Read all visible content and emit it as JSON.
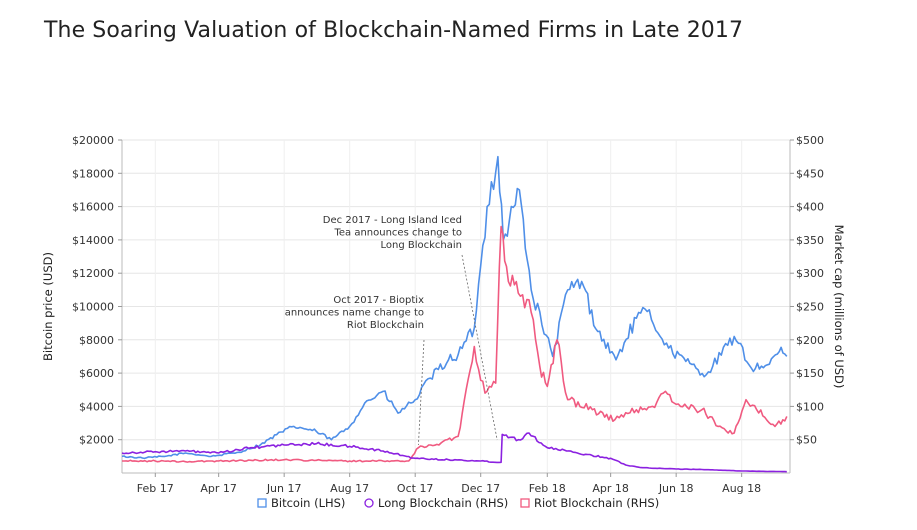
{
  "title": "The Soaring Valuation of Blockchain-Named Firms in Late 2017",
  "chart_data": {
    "type": "line",
    "title": "The Soaring Valuation of Blockchain-Named Firms in Late 2017",
    "xlabel": "",
    "ylabel": "Bitcoin price (USD)",
    "y2label": "Market cap (millions of USD)",
    "ylim": [
      0,
      20000
    ],
    "y2lim": [
      0,
      500
    ],
    "xlim": [
      "2017-01-01",
      "2018-09-15"
    ],
    "yticks": [
      "$2000",
      "$4000",
      "$6000",
      "$8000",
      "$10000",
      "$12000",
      "$14000",
      "$16000",
      "$18000",
      "$20000"
    ],
    "y2ticks": [
      "$50",
      "$100",
      "$150",
      "$200",
      "$250",
      "$300",
      "$350",
      "$400",
      "$450",
      "$500"
    ],
    "xticks": [
      "Feb 17",
      "Apr 17",
      "Jun 17",
      "Aug 17",
      "Oct 17",
      "Dec 17",
      "Feb 18",
      "Apr 18",
      "Jun 18",
      "Aug 18"
    ],
    "legend_position": "bottom-center",
    "series": [
      {
        "name": "Bitcoin (LHS)",
        "axis": "left",
        "color": "#4f8fe8",
        "points": [
          [
            "2017-01-01",
            1000
          ],
          [
            "2017-01-20",
            900
          ],
          [
            "2017-02-10",
            1000
          ],
          [
            "2017-03-01",
            1200
          ],
          [
            "2017-03-25",
            1000
          ],
          [
            "2017-04-20",
            1250
          ],
          [
            "2017-05-10",
            1700
          ],
          [
            "2017-05-25",
            2300
          ],
          [
            "2017-06-10",
            2800
          ],
          [
            "2017-07-01",
            2500
          ],
          [
            "2017-07-15",
            2000
          ],
          [
            "2017-08-01",
            2800
          ],
          [
            "2017-08-15",
            4200
          ],
          [
            "2017-09-01",
            4900
          ],
          [
            "2017-09-15",
            3600
          ],
          [
            "2017-10-01",
            4400
          ],
          [
            "2017-10-15",
            5700
          ],
          [
            "2017-11-01",
            6800
          ],
          [
            "2017-11-10",
            7100
          ],
          [
            "2017-11-25",
            8700
          ],
          [
            "2017-12-07",
            16000
          ],
          [
            "2017-12-17",
            19000
          ],
          [
            "2017-12-22",
            14000
          ],
          [
            "2018-01-06",
            17000
          ],
          [
            "2018-01-17",
            11000
          ],
          [
            "2018-02-06",
            7000
          ],
          [
            "2018-02-20",
            11000
          ],
          [
            "2018-03-05",
            11500
          ],
          [
            "2018-03-20",
            8500
          ],
          [
            "2018-04-06",
            6800
          ],
          [
            "2018-04-25",
            9300
          ],
          [
            "2018-05-05",
            9700
          ],
          [
            "2018-05-25",
            7500
          ],
          [
            "2018-06-10",
            6700
          ],
          [
            "2018-06-29",
            5900
          ],
          [
            "2018-07-25",
            8200
          ],
          [
            "2018-08-10",
            6300
          ],
          [
            "2018-08-25",
            6500
          ],
          [
            "2018-09-05",
            7300
          ],
          [
            "2018-09-12",
            7000
          ]
        ]
      },
      {
        "name": "Long Blockchain (RHS)",
        "axis": "right",
        "color": "#8b21e0",
        "points": [
          [
            "2017-01-01",
            30
          ],
          [
            "2017-02-01",
            32
          ],
          [
            "2017-03-01",
            33
          ],
          [
            "2017-04-01",
            30
          ],
          [
            "2017-05-01",
            38
          ],
          [
            "2017-06-01",
            42
          ],
          [
            "2017-07-01",
            44
          ],
          [
            "2017-08-01",
            40
          ],
          [
            "2017-09-01",
            33
          ],
          [
            "2017-10-01",
            22
          ],
          [
            "2017-11-01",
            20
          ],
          [
            "2017-12-01",
            18
          ],
          [
            "2017-12-20",
            16
          ],
          [
            "2017-12-21",
            58
          ],
          [
            "2018-01-05",
            50
          ],
          [
            "2018-01-15",
            60
          ],
          [
            "2018-02-01",
            38
          ],
          [
            "2018-03-01",
            30
          ],
          [
            "2018-04-01",
            22
          ],
          [
            "2018-04-15",
            12
          ],
          [
            "2018-05-01",
            8
          ],
          [
            "2018-06-01",
            6
          ],
          [
            "2018-07-01",
            5
          ],
          [
            "2018-08-01",
            3
          ],
          [
            "2018-09-12",
            2
          ]
        ]
      },
      {
        "name": "Riot Blockchain (RHS)",
        "axis": "right",
        "color": "#f05a80",
        "points": [
          [
            "2017-01-01",
            18
          ],
          [
            "2017-02-01",
            18
          ],
          [
            "2017-03-01",
            17
          ],
          [
            "2017-04-01",
            18
          ],
          [
            "2017-05-01",
            19
          ],
          [
            "2017-06-01",
            20
          ],
          [
            "2017-07-01",
            19
          ],
          [
            "2017-08-01",
            18
          ],
          [
            "2017-09-01",
            18
          ],
          [
            "2017-09-25",
            18
          ],
          [
            "2017-10-04",
            38
          ],
          [
            "2017-10-25",
            45
          ],
          [
            "2017-11-10",
            55
          ],
          [
            "2017-11-25",
            190
          ],
          [
            "2017-12-05",
            120
          ],
          [
            "2017-12-15",
            135
          ],
          [
            "2017-12-20",
            370
          ],
          [
            "2017-12-25",
            310
          ],
          [
            "2018-01-05",
            270
          ],
          [
            "2018-01-15",
            260
          ],
          [
            "2018-01-25",
            160
          ],
          [
            "2018-02-01",
            130
          ],
          [
            "2018-02-10",
            200
          ],
          [
            "2018-02-20",
            110
          ],
          [
            "2018-03-15",
            95
          ],
          [
            "2018-04-05",
            80
          ],
          [
            "2018-04-25",
            95
          ],
          [
            "2018-05-10",
            100
          ],
          [
            "2018-05-20",
            120
          ],
          [
            "2018-06-05",
            100
          ],
          [
            "2018-06-25",
            95
          ],
          [
            "2018-07-10",
            70
          ],
          [
            "2018-07-25",
            60
          ],
          [
            "2018-08-05",
            110
          ],
          [
            "2018-08-15",
            95
          ],
          [
            "2018-09-01",
            70
          ],
          [
            "2018-09-12",
            85
          ]
        ]
      }
    ],
    "annotations": [
      {
        "lines": [
          "Dec 2017 - Long Island Iced",
          "Tea announces change to",
          "Long Blockchain"
        ],
        "date": "2017-12-21"
      },
      {
        "lines": [
          "Oct 2017 - Bioptix",
          "announces name change to",
          "Riot Blockchain"
        ],
        "date": "2017-10-04"
      }
    ]
  }
}
